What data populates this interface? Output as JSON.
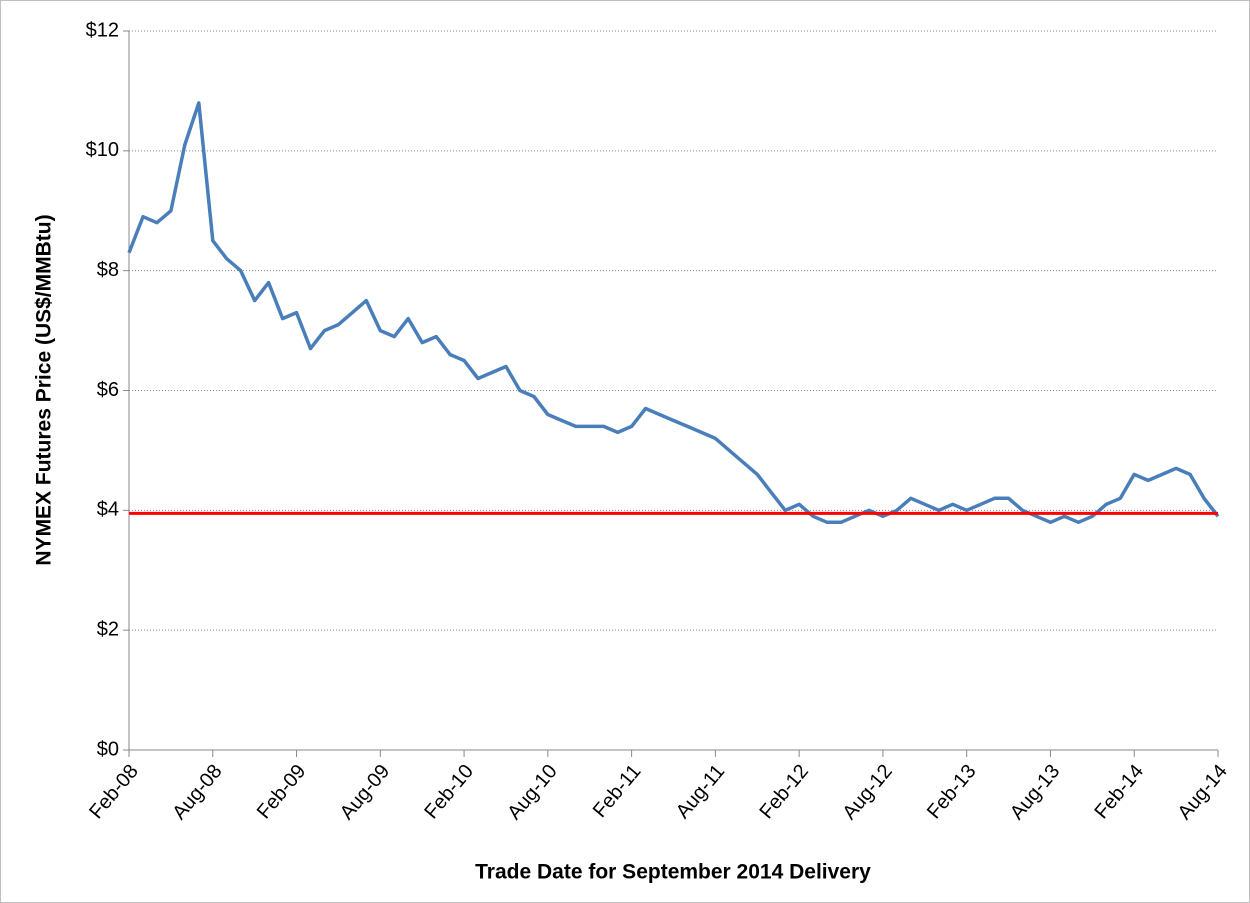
{
  "chart_data": {
    "type": "line",
    "x_label": "Trade Date for September 2014 Delivery",
    "y_label": "NYMEX Futures Price (US$/MMBtu)",
    "x": [
      "2008-02",
      "2008-03",
      "2008-04",
      "2008-05",
      "2008-06",
      "2008-07",
      "2008-08",
      "2008-09",
      "2008-10",
      "2008-11",
      "2008-12",
      "2009-01",
      "2009-02",
      "2009-03",
      "2009-04",
      "2009-05",
      "2009-06",
      "2009-07",
      "2009-08",
      "2009-09",
      "2009-10",
      "2009-11",
      "2009-12",
      "2010-01",
      "2010-02",
      "2010-03",
      "2010-04",
      "2010-05",
      "2010-06",
      "2010-07",
      "2010-08",
      "2010-09",
      "2010-10",
      "2010-11",
      "2010-12",
      "2011-01",
      "2011-02",
      "2011-03",
      "2011-04",
      "2011-05",
      "2011-06",
      "2011-07",
      "2011-08",
      "2011-09",
      "2011-10",
      "2011-11",
      "2011-12",
      "2012-01",
      "2012-02",
      "2012-03",
      "2012-04",
      "2012-05",
      "2012-06",
      "2012-07",
      "2012-08",
      "2012-09",
      "2012-10",
      "2012-11",
      "2012-12",
      "2013-01",
      "2013-02",
      "2013-03",
      "2013-04",
      "2013-05",
      "2013-06",
      "2013-07",
      "2013-08",
      "2013-09",
      "2013-10",
      "2013-11",
      "2013-12",
      "2014-01",
      "2014-02",
      "2014-03",
      "2014-04",
      "2014-05",
      "2014-06",
      "2014-07",
      "2014-08"
    ],
    "series": [
      {
        "color": "#4a7ebb",
        "values": [
          8.3,
          8.9,
          8.8,
          9.0,
          10.1,
          10.8,
          8.5,
          8.2,
          8.0,
          7.5,
          7.8,
          7.2,
          7.3,
          6.7,
          7.0,
          7.1,
          7.3,
          7.5,
          7.0,
          6.9,
          7.2,
          6.8,
          6.9,
          6.6,
          6.5,
          6.2,
          6.3,
          6.4,
          6.0,
          5.9,
          5.6,
          5.5,
          5.4,
          5.4,
          5.4,
          5.3,
          5.4,
          5.7,
          5.6,
          5.5,
          5.4,
          5.3,
          5.2,
          5.0,
          4.8,
          4.6,
          4.3,
          4.0,
          4.1,
          3.9,
          3.8,
          3.8,
          3.9,
          4.0,
          3.9,
          4.0,
          4.2,
          4.1,
          4.0,
          4.1,
          4.0,
          4.1,
          4.2,
          4.2,
          4.0,
          3.9,
          3.8,
          3.9,
          3.8,
          3.9,
          4.1,
          4.2,
          4.6,
          4.5,
          4.6,
          4.7,
          4.6,
          4.2,
          3.9
        ]
      }
    ],
    "reference_line": {
      "value": 3.95,
      "color": "#ff0000"
    },
    "xlim": [
      "2008-02",
      "2014-08"
    ],
    "xticks": [
      {
        "value": "2008-02",
        "label": "Feb-08"
      },
      {
        "value": "2008-08",
        "label": "Aug-08"
      },
      {
        "value": "2009-02",
        "label": "Feb-09"
      },
      {
        "value": "2009-08",
        "label": "Aug-09"
      },
      {
        "value": "2010-02",
        "label": "Feb-10"
      },
      {
        "value": "2010-08",
        "label": "Aug-10"
      },
      {
        "value": "2011-02",
        "label": "Feb-11"
      },
      {
        "value": "2011-08",
        "label": "Aug-11"
      },
      {
        "value": "2012-02",
        "label": "Feb-12"
      },
      {
        "value": "2012-08",
        "label": "Aug-12"
      },
      {
        "value": "2013-02",
        "label": "Feb-13"
      },
      {
        "value": "2013-08",
        "label": "Aug-13"
      },
      {
        "value": "2014-02",
        "label": "Feb-14"
      },
      {
        "value": "2014-08",
        "label": "Aug-14"
      }
    ],
    "ylim": [
      0,
      12
    ],
    "yticks": [
      {
        "value": 0,
        "label": "$0"
      },
      {
        "value": 2,
        "label": "$2"
      },
      {
        "value": 4,
        "label": "$4"
      },
      {
        "value": 6,
        "label": "$6"
      },
      {
        "value": 8,
        "label": "$8"
      },
      {
        "value": 10,
        "label": "$10"
      },
      {
        "value": 12,
        "label": "$12"
      }
    ],
    "grid": true
  }
}
